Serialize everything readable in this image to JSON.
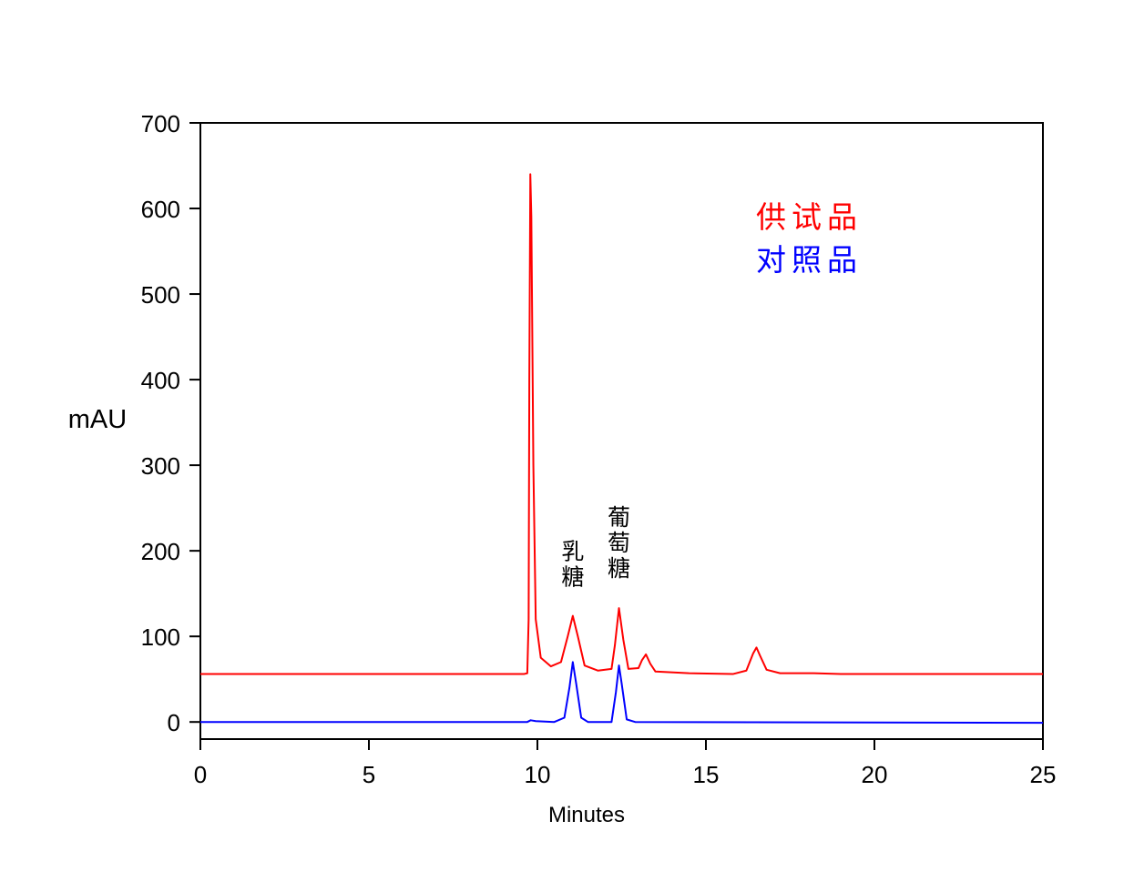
{
  "chart_data": {
    "type": "line",
    "xlabel": "Minutes",
    "ylabel": "mAU",
    "xlim": [
      0,
      25
    ],
    "ylim": [
      -20,
      700
    ],
    "xticks": [
      "0",
      "5",
      "10",
      "15",
      "20",
      "25"
    ],
    "yticks": [
      "0",
      "100",
      "200",
      "300",
      "400",
      "500",
      "600",
      "700"
    ],
    "grid": false,
    "legend_position": "top-right",
    "series": [
      {
        "name": "供试品",
        "color": "#ff0000",
        "baseline": 56,
        "points": [
          [
            0,
            56
          ],
          [
            9.6,
            56
          ],
          [
            9.7,
            57
          ],
          [
            9.74,
            120
          ],
          [
            9.76,
            400
          ],
          [
            9.79,
            640
          ],
          [
            9.82,
            590
          ],
          [
            9.88,
            300
          ],
          [
            9.95,
            120
          ],
          [
            10.1,
            75
          ],
          [
            10.4,
            65
          ],
          [
            10.7,
            70
          ],
          [
            10.9,
            100
          ],
          [
            11.05,
            124
          ],
          [
            11.2,
            100
          ],
          [
            11.4,
            66
          ],
          [
            11.8,
            60
          ],
          [
            12.2,
            62
          ],
          [
            12.3,
            90
          ],
          [
            12.42,
            133
          ],
          [
            12.55,
            96
          ],
          [
            12.7,
            62
          ],
          [
            13.0,
            63
          ],
          [
            13.1,
            72
          ],
          [
            13.22,
            79
          ],
          [
            13.35,
            68
          ],
          [
            13.5,
            59
          ],
          [
            14.5,
            57
          ],
          [
            15.8,
            56
          ],
          [
            16.2,
            60
          ],
          [
            16.4,
            80
          ],
          [
            16.5,
            87
          ],
          [
            16.6,
            78
          ],
          [
            16.8,
            61
          ],
          [
            17.2,
            57
          ],
          [
            18.2,
            57
          ],
          [
            19,
            56
          ],
          [
            25,
            56
          ]
        ]
      },
      {
        "name": "对照品",
        "color": "#0000ff",
        "baseline": 0,
        "points": [
          [
            0,
            0
          ],
          [
            9.7,
            0
          ],
          [
            9.8,
            2
          ],
          [
            9.95,
            1
          ],
          [
            10.5,
            0
          ],
          [
            10.8,
            5
          ],
          [
            10.95,
            40
          ],
          [
            11.05,
            70
          ],
          [
            11.15,
            45
          ],
          [
            11.3,
            5
          ],
          [
            11.5,
            0
          ],
          [
            12.2,
            0
          ],
          [
            12.33,
            35
          ],
          [
            12.42,
            66
          ],
          [
            12.5,
            45
          ],
          [
            12.65,
            3
          ],
          [
            12.9,
            0
          ],
          [
            25,
            -1
          ]
        ]
      }
    ],
    "annotations": [
      {
        "text": "乳\n糖",
        "x": 11.05,
        "y": 190
      },
      {
        "text": "葡\n萄\n糖",
        "x": 12.42,
        "y": 230
      }
    ]
  }
}
